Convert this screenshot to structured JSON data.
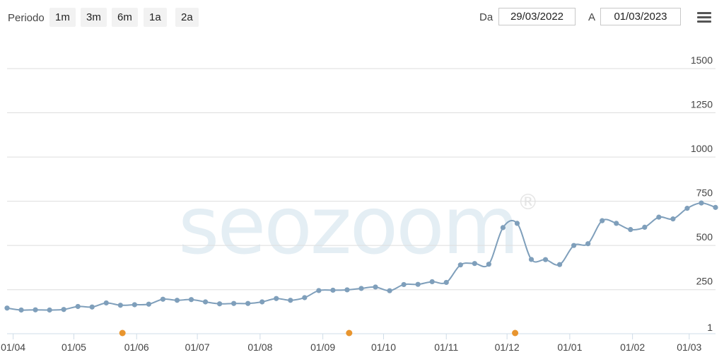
{
  "toolbar": {
    "period_label": "Periodo",
    "range_buttons": [
      "1m",
      "3m",
      "6m",
      "1a",
      "2a"
    ],
    "from_label": "Da",
    "from_value": "29/03/2022",
    "to_label": "A",
    "to_value": "01/03/2023",
    "menu_icon": "hamburger-menu-icon"
  },
  "watermark": {
    "text": "seozoom",
    "symbol": "®"
  },
  "colors": {
    "line": "#7f9fbb",
    "marker": "#e8952f",
    "grid": "#dedede",
    "axis": "#cfdce8"
  },
  "chart_data": {
    "type": "line",
    "x_ticks": [
      "01/04",
      "01/05",
      "01/06",
      "01/07",
      "01/08",
      "01/09",
      "01/10",
      "01/11",
      "01/12",
      "01/01",
      "01/02",
      "01/03"
    ],
    "y_ticks": [
      1,
      250,
      500,
      750,
      1000,
      1250,
      1500
    ],
    "ylim": [
      1,
      1640
    ],
    "grid": true,
    "series": [
      {
        "x": [
          "29/03/2022",
          "05/04/2022",
          "12/04/2022",
          "19/04/2022",
          "26/04/2022",
          "03/05/2022",
          "10/05/2022",
          "17/05/2022",
          "24/05/2022",
          "31/05/2022",
          "07/06/2022",
          "14/06/2022",
          "21/06/2022",
          "28/06/2022",
          "05/07/2022",
          "12/07/2022",
          "19/07/2022",
          "26/07/2022",
          "02/08/2022",
          "09/08/2022",
          "16/08/2022",
          "23/08/2022",
          "30/08/2022",
          "06/09/2022",
          "13/09/2022",
          "20/09/2022",
          "27/09/2022",
          "04/10/2022",
          "11/10/2022",
          "18/10/2022",
          "25/10/2022",
          "01/11/2022",
          "08/11/2022",
          "15/11/2022",
          "22/11/2022",
          "29/11/2022",
          "06/12/2022",
          "13/12/2022",
          "20/12/2022",
          "27/12/2022",
          "03/01/2023",
          "10/01/2023",
          "17/01/2023",
          "24/01/2023",
          "31/01/2023",
          "07/02/2023",
          "14/02/2023",
          "21/02/2023",
          "28/02/2023",
          "07/03/2023",
          "14/03/2023"
        ],
        "y": [
          146,
          135,
          136,
          135,
          138,
          155,
          152,
          175,
          162,
          165,
          168,
          196,
          190,
          194,
          181,
          170,
          172,
          172,
          181,
          200,
          190,
          205,
          245,
          247,
          249,
          257,
          265,
          244,
          279,
          280,
          295,
          291,
          390,
          398,
          394,
          601,
          625,
          421,
          420,
          392,
          500,
          510,
          640,
          625,
          590,
          603,
          660,
          650,
          710,
          740,
          715
        ]
      }
    ],
    "annotations_x": [
      "25/05/2022",
      "14/09/2022",
      "05/12/2022"
    ]
  }
}
